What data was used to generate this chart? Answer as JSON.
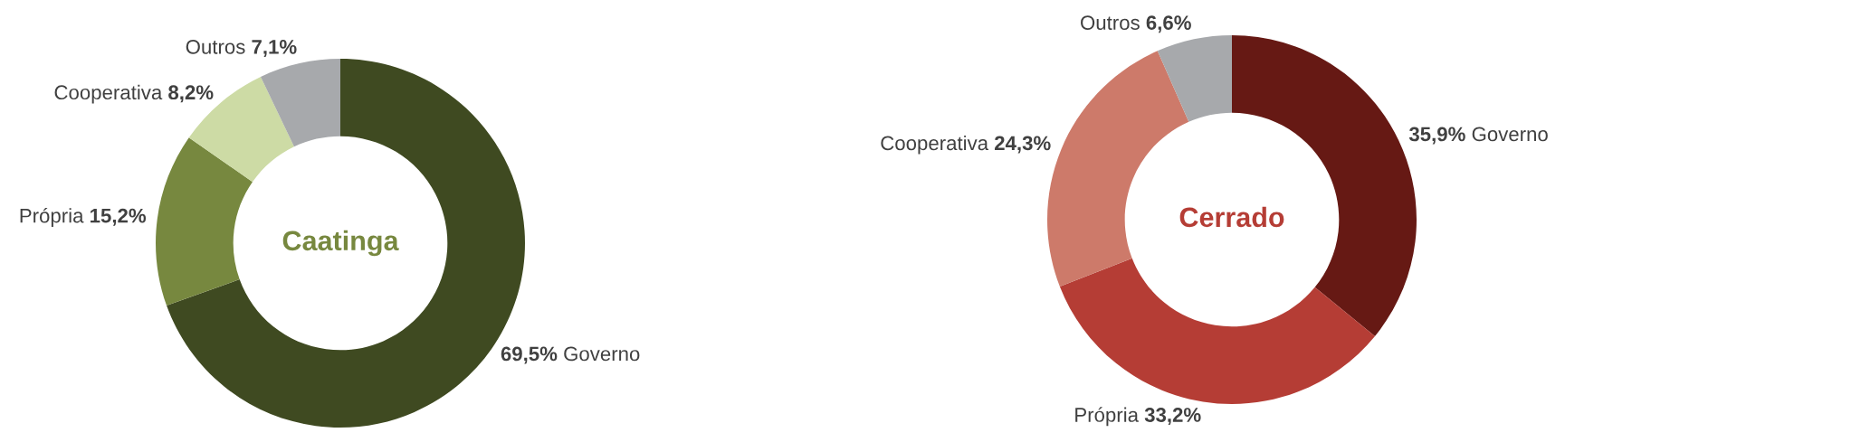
{
  "chart_data": [
    {
      "type": "donut",
      "title": "Caatinga",
      "categories": [
        "Governo",
        "Própria",
        "Cooperativa",
        "Outros"
      ],
      "values": [
        69.5,
        15.2,
        8.2,
        7.1
      ],
      "colors": [
        "#3f4a21",
        "#77883f",
        "#cddba5",
        "#a7a9ac"
      ],
      "value_labels": [
        "69,5%",
        "15,2%",
        "8,2%",
        "7,1%"
      ]
    },
    {
      "type": "donut",
      "title": "Cerrado",
      "categories": [
        "Governo",
        "Própria",
        "Cooperativa",
        "Outros"
      ],
      "values": [
        35.9,
        33.2,
        24.3,
        6.6
      ],
      "colors": [
        "#661914",
        "#b53d35",
        "#cd7a6a",
        "#a7a9ac"
      ],
      "value_labels": [
        "35,9%",
        "33,2%",
        "24,3%",
        "6,6%"
      ]
    }
  ]
}
